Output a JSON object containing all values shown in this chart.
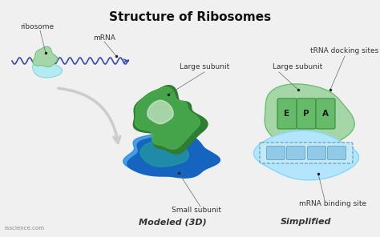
{
  "title": "Structure of Ribosomes",
  "title_fontsize": 11,
  "title_fontweight": "bold",
  "bg_color": "#f0f0f0",
  "label_ribosome": "ribosome",
  "label_mrna": "mRNA",
  "label_large_subunit": "Large subunit",
  "label_small_subunit": "Small subunit",
  "label_trna": "tRNA docking sites",
  "label_mrna_binding": "mRNA binding site",
  "label_modeled": "Modeled (3D)",
  "label_simplified": "Simplified",
  "label_E": "E",
  "label_P": "P",
  "label_A": "A",
  "label_rss": "rsscience.com",
  "color_large_green_dark": "#2e7d32",
  "color_large_green_mid": "#4caf50",
  "color_large_green_light": "#81c784",
  "color_small_blue_dark": "#1565c0",
  "color_small_blue_mid": "#1e88e5",
  "color_small_blue_light": "#64b5f6",
  "color_small_teal": "#26a69a",
  "color_simplified_large": "#a5d6a7",
  "color_simplified_large_edge": "#66bb6a",
  "color_simplified_small": "#b3e5fc",
  "color_simplified_small_edge": "#81d4fa",
  "color_slots_fill": "#66bb6a",
  "color_slots_edge": "#388e3c",
  "color_mrna_strip_fill": "#b3e5fc",
  "color_mrna_strip_edge": "#4fc3f7",
  "color_ribosome_top": "#a5d6a7",
  "color_ribosome_bot": "#b2ebf2",
  "color_mrna_wave": "#3949ab",
  "color_arrow_big": "#cccccc",
  "color_label": "#333333",
  "color_dot": "#222222"
}
